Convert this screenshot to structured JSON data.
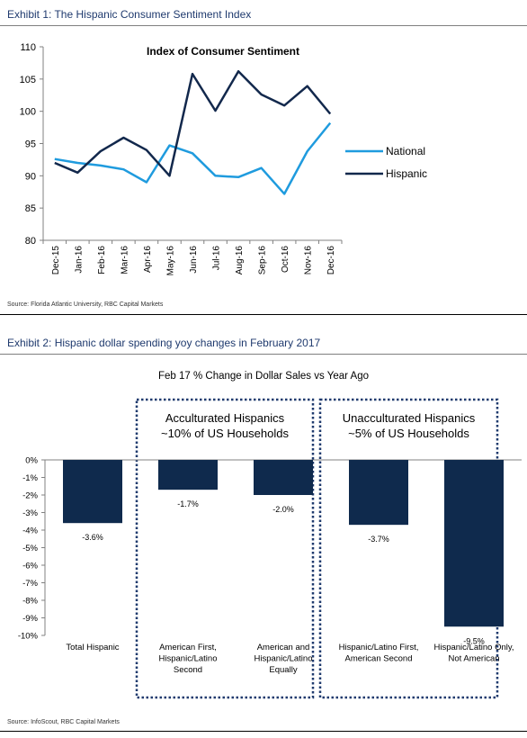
{
  "exhibit1": {
    "header": "Exhibit 1: The Hispanic Consumer Sentiment Index",
    "source": "Source: Florida Atlantic University, RBC Capital Markets"
  },
  "exhibit2": {
    "header": "Exhibit 2:  Hispanic dollar spending yoy changes in February 2017",
    "source": "Source: InfoScout, RBC Capital Markets"
  },
  "chart_data": [
    {
      "type": "line",
      "title": "Index of Consumer Sentiment",
      "xlabel": "",
      "ylabel": "",
      "categories": [
        "Dec-15",
        "Jan-16",
        "Feb-16",
        "Mar-16",
        "Apr-16",
        "May-16",
        "Jun-16",
        "Jul-16",
        "Aug-16",
        "Sep-16",
        "Oct-16",
        "Nov-16",
        "Dec-16"
      ],
      "ylim": [
        80,
        110
      ],
      "yticks": [
        80,
        85,
        90,
        95,
        100,
        105,
        110
      ],
      "grid": false,
      "legend_position": "right",
      "series": [
        {
          "name": "National",
          "color": "#1f9bde",
          "values": [
            92.6,
            92.0,
            91.6,
            91.0,
            89.0,
            94.7,
            93.5,
            90.0,
            89.8,
            91.2,
            87.2,
            93.8,
            98.2
          ]
        },
        {
          "name": "Hispanic",
          "color": "#12284c",
          "values": [
            92.0,
            90.5,
            93.8,
            95.9,
            94.0,
            90.0,
            105.8,
            100.1,
            106.2,
            102.6,
            100.9,
            103.9,
            99.6
          ]
        }
      ]
    },
    {
      "type": "bar",
      "title": "Feb 17 % Change in Dollar Sales vs Year Ago",
      "xlabel": "",
      "ylabel": "",
      "ylim": [
        -10,
        0
      ],
      "yticks": [
        "0%",
        "-1%",
        "-2%",
        "-3%",
        "-4%",
        "-5%",
        "-6%",
        "-7%",
        "-8%",
        "-9%",
        "-10%"
      ],
      "grid": false,
      "bar_color": "#0f2a4d",
      "categories": [
        [
          "Total Hispanic"
        ],
        [
          "American First,",
          "Hispanic/Latino",
          "Second"
        ],
        [
          "American and",
          "Hispanic/Latino",
          "Equally"
        ],
        [
          "Hispanic/Latino First,",
          "American Second"
        ],
        [
          "Hispanic/Latino Only,",
          "Not American"
        ]
      ],
      "values": [
        -3.6,
        -1.7,
        -2.0,
        -3.7,
        -9.5
      ],
      "data_labels": [
        "-3.6%",
        "-1.7%",
        "-2.0%",
        "-3.7%",
        "-9.5%"
      ],
      "groups": [
        {
          "lines": [
            "Acculturated Hispanics",
            "~10% of US Households"
          ]
        },
        {
          "lines": [
            "Unacculturated Hispanics",
            "~5% of US Households"
          ]
        }
      ]
    }
  ]
}
